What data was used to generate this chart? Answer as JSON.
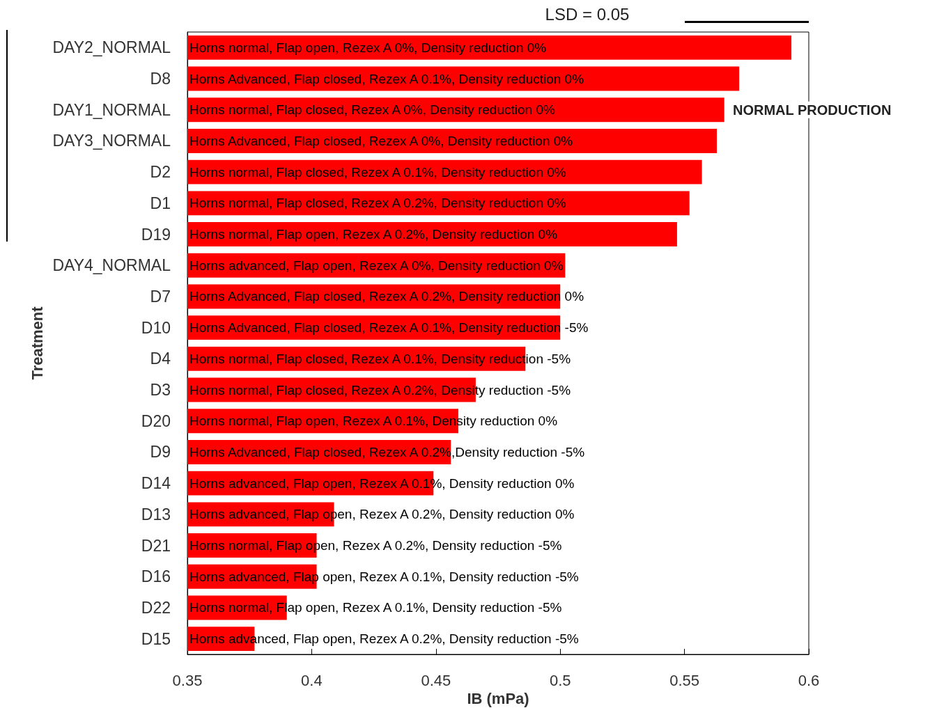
{
  "chart_data": {
    "type": "bar",
    "orientation": "horizontal",
    "xlabel": "IB (mPa)",
    "ylabel": "Treatment",
    "categories": [
      "DAY2_NORMAL",
      "D8",
      "DAY1_NORMAL",
      "DAY3_NORMAL",
      "D2",
      "D1",
      "D19",
      "DAY4_NORMAL",
      "D7",
      "D10",
      "D4",
      "D3",
      "D20",
      "D9",
      "D14",
      "D13",
      "D21",
      "D16",
      "D22",
      "D15"
    ],
    "values": [
      0.593,
      0.572,
      0.566,
      0.563,
      0.557,
      0.552,
      0.547,
      0.502,
      0.5,
      0.5,
      0.486,
      0.466,
      0.459,
      0.456,
      0.449,
      0.409,
      0.402,
      0.402,
      0.39,
      0.377
    ],
    "color": "#ff0000",
    "xlim": [
      0.35,
      0.6
    ],
    "xticks": [
      0.35,
      0.4,
      0.45,
      0.5,
      0.55,
      0.6
    ],
    "grid": false,
    "annotations": [
      "Horns normal, Flap open, Rezex A 0%, Density reduction 0%",
      "Horns Advanced, Flap closed, Rezex A 0.1%, Density reduction 0%",
      "Horns normal, Flap closed, Rezex A 0%, Density reduction 0%",
      "Horns Advanced, Flap closed, Rezex A 0%, Density reduction 0%",
      "Horns normal, Flap closed, Rezex A 0.1%, Density reduction 0%",
      "Horns normal, Flap closed, Rezex A 0.2%, Density reduction 0%",
      "Horns normal, Flap open, Rezex A 0.2%, Density reduction 0%",
      "Horns advanced, Flap open, Rezex A 0%, Density reduction 0%",
      "Horns Advanced, Flap closed, Rezex A 0.2%, Density reduction 0%",
      "Horns Advanced, Flap closed, Rezex A 0.1%, Density reduction -5%",
      "Horns normal, Flap closed, Rezex A 0.1%, Density reduction -5%",
      "Horns normal, Flap closed, Rezex A 0.2%, Density reduction -5%",
      "Horns normal, Flap open, Rezex A 0.1%, Density reduction 0%",
      "Horns Advanced, Flap closed, Rezex A 0.2%,Density reduction -5%",
      "Horns advanced, Flap open, Rezex A 0.1%, Density reduction 0%",
      "Horns advanced, Flap open, Rezex A 0.2%, Density reduction 0%",
      "Horns normal, Flap open, Rezex A 0.2%, Density reduction -5%",
      "Horns advanced, Flap open, Rezex A 0.1%, Density reduction -5%",
      "Horns normal, Flap open, Rezex A 0.1%, Density reduction -5%",
      "Horns advanced, Flap open, Rezex A 0.2%, Density reduction -5%",
      "NORMAL PRODUCTION",
      "LSD = 0.05"
    ]
  }
}
